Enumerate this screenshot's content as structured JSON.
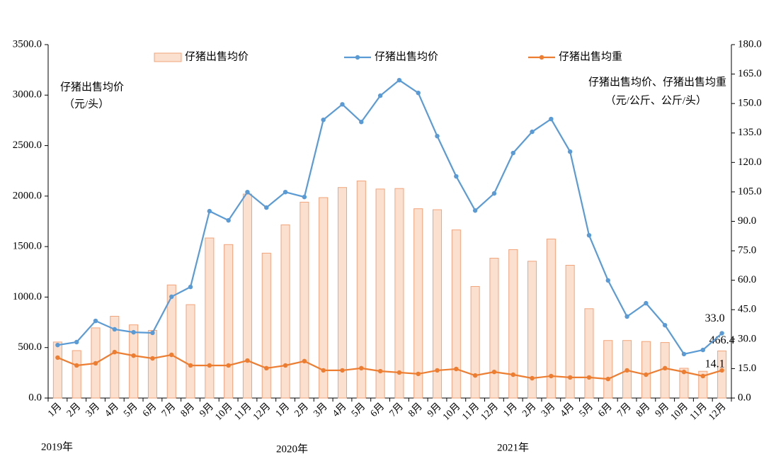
{
  "chart_data": {
    "type": "bar_line",
    "y_label": [
      "仔猪出售均价",
      "（元/头）"
    ],
    "y2_label": [
      "仔猪出售均价、仔猪出售均重",
      "（元/公斤、公斤/头）"
    ],
    "categories": [
      "1月",
      "2月",
      "3月",
      "4月",
      "5月",
      "6月",
      "7月",
      "8月",
      "9月",
      "10月",
      "11月",
      "12月",
      "1月",
      "2月",
      "3月",
      "4月",
      "5月",
      "6月",
      "7月",
      "8月",
      "9月",
      "10月",
      "11月",
      "12月",
      "1月",
      "2月",
      "3月",
      "4月",
      "5月",
      "6月",
      "7月",
      "8月",
      "9月",
      "10月",
      "11月",
      "12月"
    ],
    "year_labels": [
      "2019年",
      "2020年",
      "2021年"
    ],
    "ylim": [
      0,
      3500
    ],
    "yticks": [
      {
        "value": 0,
        "label": "0.0"
      },
      {
        "value": 500,
        "label": "500.0"
      },
      {
        "value": 1000,
        "label": "1000.0"
      },
      {
        "value": 1500,
        "label": "1500.0"
      },
      {
        "value": 2000,
        "label": "2000.0"
      },
      {
        "value": 2500,
        "label": "2500.0"
      },
      {
        "value": 3000,
        "label": "3000.0"
      },
      {
        "value": 3500,
        "label": "3500.0"
      }
    ],
    "y2lim": [
      0,
      180
    ],
    "y2ticks": [
      {
        "value": 0,
        "label": "0.0"
      },
      {
        "value": 15,
        "label": "15.0"
      },
      {
        "value": 30,
        "label": "30.0"
      },
      {
        "value": 45,
        "label": "45.0"
      },
      {
        "value": 60,
        "label": "60.0"
      },
      {
        "value": 75,
        "label": "75.0"
      },
      {
        "value": 90,
        "label": "90.0"
      },
      {
        "value": 105,
        "label": "105.0"
      },
      {
        "value": 120,
        "label": "120.0"
      },
      {
        "value": 135,
        "label": "135.0"
      },
      {
        "value": 150,
        "label": "150.0"
      },
      {
        "value": 165,
        "label": "165.0"
      },
      {
        "value": 180,
        "label": "180.0"
      }
    ],
    "grid": false,
    "series": [
      {
        "name": "仔猪出售均价",
        "kind": "bar",
        "color": "#fbe0cf",
        "edge": "#f2a47a",
        "values": [
          555,
          470,
          695,
          810,
          725,
          670,
          1120,
          925,
          1585,
          1520,
          2020,
          1435,
          1715,
          1940,
          1985,
          2085,
          2150,
          2070,
          2075,
          1875,
          1865,
          1665,
          1105,
          1385,
          1470,
          1355,
          1575,
          1315,
          885,
          570,
          570,
          560,
          550,
          295,
          265,
          466.4
        ],
        "value_labels": [
          null,
          null,
          null,
          null,
          null,
          null,
          null,
          null,
          null,
          null,
          null,
          null,
          null,
          null,
          null,
          null,
          null,
          null,
          null,
          null,
          null,
          null,
          null,
          null,
          null,
          null,
          null,
          null,
          null,
          null,
          null,
          null,
          null,
          null,
          null,
          "466.4"
        ]
      },
      {
        "name": "仔猪出售均价",
        "kind": "line",
        "axis": "y2",
        "color": "#5b9bd5",
        "values": [
          27.0,
          28.5,
          39.3,
          35.0,
          33.5,
          33.2,
          51.6,
          56.6,
          95.2,
          90.5,
          104.9,
          97.0,
          104.9,
          102.4,
          141.7,
          149.6,
          140.6,
          154.0,
          161.9,
          155.4,
          133.4,
          112.9,
          95.5,
          104.2,
          124.8,
          135.6,
          142.1,
          125.5,
          82.9,
          59.9,
          41.5,
          48.3,
          37.1,
          22.4,
          24.5,
          33.0
        ],
        "value_labels": [
          null,
          null,
          null,
          null,
          null,
          null,
          null,
          null,
          null,
          null,
          null,
          null,
          null,
          null,
          null,
          null,
          null,
          null,
          null,
          null,
          null,
          null,
          null,
          null,
          null,
          null,
          null,
          null,
          null,
          null,
          null,
          null,
          null,
          null,
          null,
          "33.0"
        ]
      },
      {
        "name": "仔猪出售均重",
        "kind": "line",
        "axis": "y2",
        "color": "#ed7d31",
        "values": [
          20.6,
          16.6,
          17.7,
          23.4,
          21.6,
          20.2,
          22.0,
          16.6,
          16.6,
          16.6,
          19.1,
          15.2,
          16.6,
          18.8,
          14.1,
          14.1,
          15.2,
          13.7,
          13.0,
          12.3,
          14.1,
          14.8,
          11.5,
          13.3,
          11.9,
          10.1,
          11.2,
          10.5,
          10.5,
          9.7,
          14.1,
          11.9,
          15.2,
          13.3,
          11.2,
          14.1
        ],
        "value_labels": [
          null,
          null,
          null,
          null,
          null,
          null,
          null,
          null,
          null,
          null,
          null,
          null,
          null,
          null,
          null,
          null,
          null,
          null,
          null,
          null,
          null,
          null,
          null,
          null,
          null,
          null,
          null,
          null,
          null,
          null,
          null,
          null,
          null,
          null,
          null,
          "14.1"
        ]
      }
    ]
  }
}
